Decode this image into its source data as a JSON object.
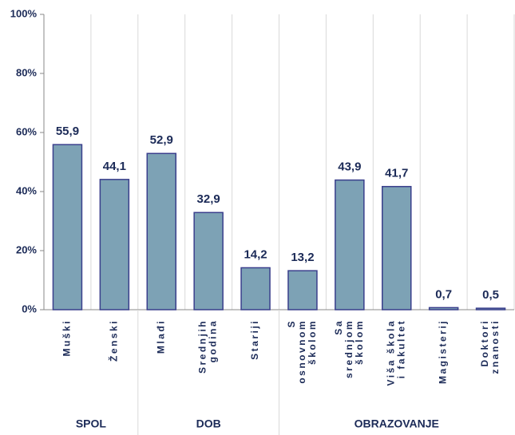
{
  "chart_data": {
    "type": "bar",
    "categories": [
      "Muški",
      "Ženski",
      "Mlađi",
      "Srednjih\ngodina",
      "Stariji",
      "S\nosnovnom\nškolom",
      "Sa\nsrednjom\nškolom",
      "Viša škola\ni fakultet",
      "Magisterij",
      "Doktori\nznanosti"
    ],
    "values": [
      55.9,
      44.1,
      52.9,
      32.9,
      14.2,
      13.2,
      43.9,
      41.7,
      0.7,
      0.5
    ],
    "value_labels": [
      "55,9",
      "44,1",
      "52,9",
      "32,9",
      "14,2",
      "13,2",
      "43,9",
      "41,7",
      "0,7",
      "0,5"
    ],
    "color": "#7da2b5",
    "ylim": [
      0,
      100
    ],
    "yticks": [
      {
        "value": 0,
        "label": "0%"
      },
      {
        "value": 20,
        "label": "20%"
      },
      {
        "value": 40,
        "label": "40%"
      },
      {
        "value": 60,
        "label": "60%"
      },
      {
        "value": 80,
        "label": "80%"
      },
      {
        "value": 100,
        "label": "100%"
      }
    ],
    "grid": false,
    "groups": [
      {
        "name": "SPOL",
        "count": 2
      },
      {
        "name": "DOB",
        "count": 3
      },
      {
        "name": "OBRAZOVANJE",
        "count": 5
      }
    ]
  }
}
